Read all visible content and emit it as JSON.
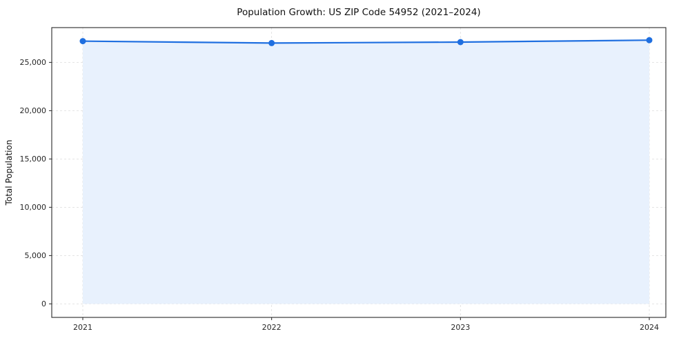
{
  "chart_data": {
    "type": "area",
    "title": "Population Growth: US ZIP Code 54952 (2021–2024)",
    "xlabel": "",
    "ylabel": "Total Population",
    "x": [
      2021,
      2022,
      2023,
      2024
    ],
    "series": [
      {
        "name": "Total Population",
        "values": [
          27200,
          27000,
          27100,
          27300
        ]
      }
    ],
    "yticks": [
      0,
      5000,
      10000,
      15000,
      20000,
      25000
    ],
    "ylim": [
      -1400,
      28600
    ],
    "grid": true,
    "grid_style": "dashed",
    "legend": false,
    "marker": "circle",
    "colors": {
      "line": "#1f6fe0",
      "marker": "#1f6fe0",
      "fill": "#e8f1fd",
      "grid": "#dcdcdc",
      "axis": "#262626",
      "text": "#262626"
    }
  }
}
